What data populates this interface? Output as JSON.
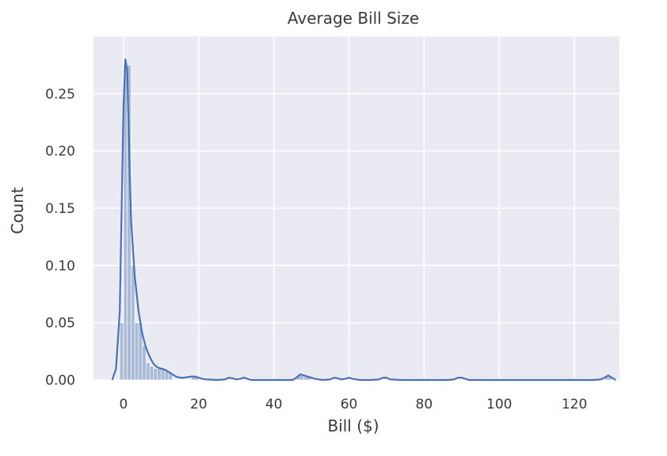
{
  "chart_data": {
    "type": "histogram",
    "title": "Average Bill Size",
    "xlabel": "Bill ($)",
    "ylabel": "Count",
    "xlim": [
      -8,
      132
    ],
    "ylim": [
      0,
      0.3
    ],
    "xticks": [
      0,
      20,
      40,
      60,
      80,
      100,
      120
    ],
    "yticks": [
      0.0,
      0.05,
      0.1,
      0.15,
      0.2,
      0.25
    ],
    "ytick_labels": [
      "0.00",
      "0.05",
      "0.10",
      "0.15",
      "0.20",
      "0.25"
    ],
    "grid": true,
    "background": "#eaeaf2",
    "series_color": "#4c72b0",
    "histogram_bins": [
      {
        "x0": -1.0,
        "x1": 0.0,
        "value": 0.05
      },
      {
        "x0": 0.0,
        "x1": 1.0,
        "value": 0.275
      },
      {
        "x0": 1.0,
        "x1": 2.0,
        "value": 0.275
      },
      {
        "x0": 2.0,
        "x1": 3.0,
        "value": 0.1
      },
      {
        "x0": 3.0,
        "x1": 4.0,
        "value": 0.05
      },
      {
        "x0": 4.0,
        "x1": 5.0,
        "value": 0.05
      },
      {
        "x0": 5.0,
        "x1": 6.0,
        "value": 0.03
      },
      {
        "x0": 6.0,
        "x1": 7.0,
        "value": 0.015
      },
      {
        "x0": 7.0,
        "x1": 8.0,
        "value": 0.012
      },
      {
        "x0": 8.0,
        "x1": 9.0,
        "value": 0.01
      },
      {
        "x0": 9.0,
        "x1": 10.0,
        "value": 0.01
      },
      {
        "x0": 10.0,
        "x1": 11.0,
        "value": 0.01
      },
      {
        "x0": 11.0,
        "x1": 12.0,
        "value": 0.008
      },
      {
        "x0": 12.0,
        "x1": 13.0,
        "value": 0.006
      },
      {
        "x0": 18.0,
        "x1": 20.0,
        "value": 0.003
      },
      {
        "x0": 46.0,
        "x1": 48.0,
        "value": 0.004
      },
      {
        "x0": 48.0,
        "x1": 50.0,
        "value": 0.003
      },
      {
        "x0": 128.0,
        "x1": 130.0,
        "value": 0.003
      }
    ],
    "kde": {
      "x": [
        -3,
        -2,
        -1,
        -0.5,
        0,
        0.5,
        1,
        1.5,
        2,
        3,
        4,
        5,
        6,
        7,
        8,
        9,
        10,
        11,
        12,
        13,
        14,
        15,
        16,
        17,
        18,
        19,
        20,
        21,
        22,
        25,
        27,
        28,
        29,
        30,
        31,
        32,
        33,
        34,
        36,
        45,
        46,
        47,
        48,
        49,
        50,
        51,
        53,
        55,
        56,
        57,
        58,
        59,
        60,
        61,
        63,
        66,
        68,
        69,
        70,
        71,
        74,
        80,
        86,
        88,
        89,
        90,
        91,
        92,
        95,
        100,
        110,
        120,
        125,
        127,
        128,
        129,
        130,
        131
      ],
      "y": [
        0.0,
        0.01,
        0.06,
        0.15,
        0.24,
        0.28,
        0.27,
        0.2,
        0.14,
        0.09,
        0.06,
        0.04,
        0.028,
        0.02,
        0.014,
        0.011,
        0.01,
        0.009,
        0.007,
        0.005,
        0.003,
        0.002,
        0.002,
        0.0025,
        0.003,
        0.003,
        0.002,
        0.001,
        0.0005,
        0.0,
        0.0005,
        0.002,
        0.0015,
        0.0005,
        0.001,
        0.002,
        0.001,
        0.0,
        0.0,
        0.0,
        0.002,
        0.005,
        0.004,
        0.003,
        0.002,
        0.001,
        0.0,
        0.0005,
        0.002,
        0.0015,
        0.0005,
        0.001,
        0.002,
        0.001,
        0.0,
        0.0,
        0.0005,
        0.002,
        0.002,
        0.0005,
        0.0,
        0.0,
        0.0,
        0.0005,
        0.002,
        0.002,
        0.001,
        0.0,
        0.0,
        0.0,
        0.0,
        0.0,
        0.0,
        0.0005,
        0.002,
        0.004,
        0.002,
        0.0
      ]
    }
  }
}
